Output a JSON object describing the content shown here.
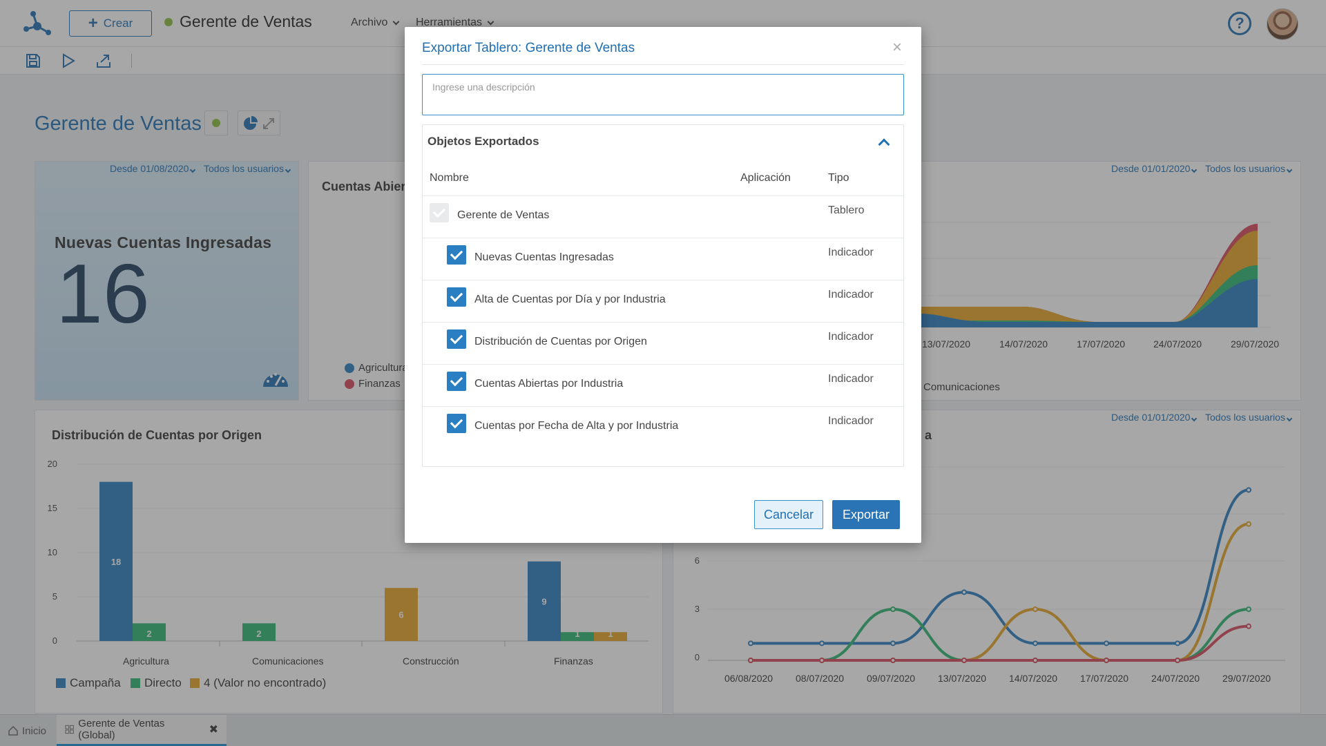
{
  "topbar": {
    "crear_label": "Crear",
    "app_title": "Gerente de Ventas",
    "status_color": "#8bbf3c",
    "menu": [
      {
        "label": "Archivo"
      },
      {
        "label": "Herramientas"
      }
    ],
    "help_icon": "question-icon",
    "avatar_icon": "user-avatar"
  },
  "toolbar": {
    "icons": [
      "save-icon",
      "play-icon",
      "export-icon"
    ]
  },
  "dashboard": {
    "title": "Gerente de Ventas",
    "kpi": {
      "filter_from": "Desde 01/08/2020",
      "filter_users": "Todos los usuarios",
      "title": "Nuevas Cuentas Ingresadas",
      "value": "16",
      "icon": "gauge-icon"
    },
    "open_accounts": {
      "title": "Cuentas Abier",
      "legend": [
        "Agricultura",
        "Finanzas"
      ]
    },
    "area_chart": {
      "filter_from": "Desde 01/01/2020",
      "filter_users": "Todos los usuarios",
      "x_labels": [
        "13/07/2020",
        "14/07/2020",
        "17/07/2020",
        "24/07/2020",
        "29/07/2020"
      ],
      "legend_partial": "Comunicaciones"
    },
    "bar_chart": {
      "title": "Distribución de Cuentas por Origen",
      "y_ticks": [
        "20",
        "15",
        "10",
        "5",
        "0"
      ],
      "categories": [
        "Agricultura",
        "Comunicaciones",
        "Construcción",
        "Finanzas"
      ],
      "bar_labels": [
        "18",
        "2",
        "2",
        "6",
        "9",
        "1",
        "1"
      ],
      "legend": [
        "Campaña",
        "Directo",
        "4 (Valor no encontrado)"
      ]
    },
    "line_chart": {
      "filter_from": "Desde 01/01/2020",
      "filter_users": "Todos los usuarios",
      "title_partial": "a",
      "y_ticks": [
        "6",
        "3",
        "0"
      ],
      "x_labels": [
        "06/08/2020",
        "08/07/2020",
        "09/07/2020",
        "13/07/2020",
        "14/07/2020",
        "17/07/2020",
        "24/07/2020",
        "29/07/2020"
      ]
    }
  },
  "chart_data": [
    {
      "type": "bar",
      "title": "Distribución de Cuentas por Origen",
      "categories": [
        "Agricultura",
        "Comunicaciones",
        "Construcción",
        "Finanzas"
      ],
      "series": [
        {
          "name": "Campaña",
          "values": [
            18,
            0,
            0,
            9
          ]
        },
        {
          "name": "Directo",
          "values": [
            2,
            2,
            0,
            1
          ]
        },
        {
          "name": "4 (Valor no encontrado)",
          "values": [
            0,
            0,
            6,
            1
          ]
        }
      ],
      "ylim": [
        0,
        20
      ]
    },
    {
      "type": "line",
      "x": [
        "06/08/2020",
        "08/07/2020",
        "09/07/2020",
        "13/07/2020",
        "14/07/2020",
        "17/07/2020",
        "24/07/2020",
        "29/07/2020"
      ],
      "series": [
        {
          "values": [
            1,
            1,
            1,
            4,
            1,
            1,
            1,
            10
          ]
        },
        {
          "values": [
            0,
            0,
            3,
            0,
            0,
            0,
            0,
            3
          ]
        },
        {
          "values": [
            0,
            0,
            0,
            0,
            3,
            0,
            0,
            8
          ]
        },
        {
          "values": [
            0,
            0,
            0,
            0,
            0,
            0,
            0,
            2
          ]
        }
      ],
      "ylim": [
        0,
        10
      ]
    }
  ],
  "modal": {
    "title": "Exportar Tablero: Gerente de Ventas",
    "description_placeholder": "Ingrese una descripción",
    "objects_header": "Objetos Exportados",
    "columns": {
      "name": "Nombre",
      "app": "Aplicación",
      "type": "Tipo"
    },
    "rows": [
      {
        "name": "Gerente de Ventas",
        "type": "Tablero"
      },
      {
        "name": "Nuevas Cuentas Ingresadas",
        "type": "Indicador"
      },
      {
        "name": "Alta de Cuentas por Día y por Industria",
        "type": "Indicador"
      },
      {
        "name": "Distribución de Cuentas por Origen",
        "type": "Indicador"
      },
      {
        "name": "Cuentas Abiertas por Industria",
        "type": "Indicador"
      },
      {
        "name": "Cuentas por Fecha de Alta y por Industria",
        "type": "Indicador"
      }
    ],
    "cancel_label": "Cancelar",
    "export_label": "Exportar"
  },
  "tabs": [
    {
      "label": "Inicio"
    },
    {
      "label": "Gerente de Ventas (Global)"
    }
  ],
  "colors": {
    "accent": "#1f6fb2",
    "blue": "#2a7ec2",
    "green": "#2bb673",
    "orange": "#e5a526",
    "red": "#d9475a"
  }
}
